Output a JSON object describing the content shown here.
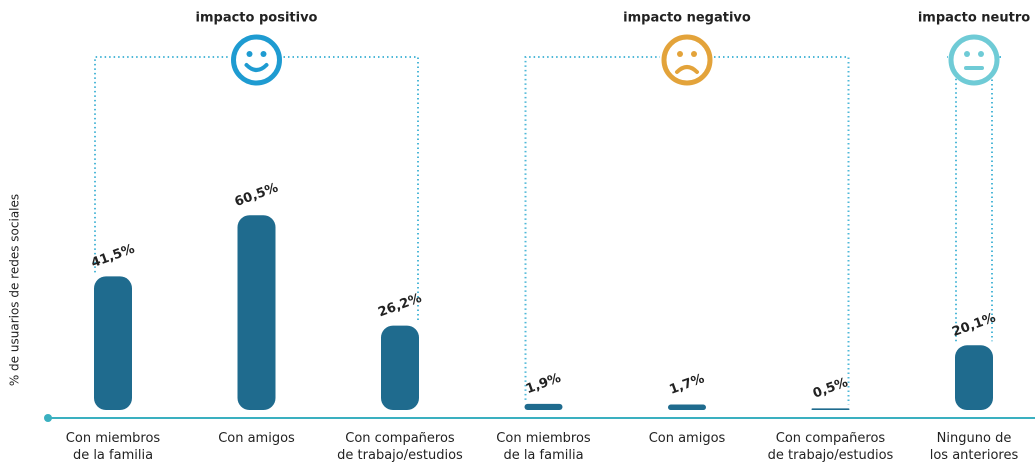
{
  "chart_data": {
    "type": "bar",
    "y_label": "% de usuarios de redes sociales",
    "categories": [
      "Con miembros\nde la familia",
      "Con amigos",
      "Con compañeros\nde trabajo/estudios",
      "Con miembros\nde la familia",
      "Con amigos",
      "Con compañeros\nde trabajo/estudios",
      "Ninguno de\nlos anteriores"
    ],
    "values": [
      41.5,
      60.5,
      26.2,
      1.9,
      1.7,
      0.5,
      20.1
    ],
    "value_labels": [
      "41,5%",
      "60,5%",
      "26,2%",
      "1,9%",
      "1,7%",
      "0,5%",
      "20,1%"
    ],
    "color": "#1f6b8e",
    "ylim": [
      0,
      100
    ],
    "groups": [
      {
        "label": "impacto positivo",
        "size": 3,
        "color": "#1e9bd1",
        "mood": "positive"
      },
      {
        "label": "impacto negativo",
        "size": 3,
        "color": "#e3a33a",
        "mood": "negative"
      },
      {
        "label": "impacto neutro",
        "size": 1,
        "color": "#6fcbd6",
        "mood": "neutral"
      }
    ]
  }
}
